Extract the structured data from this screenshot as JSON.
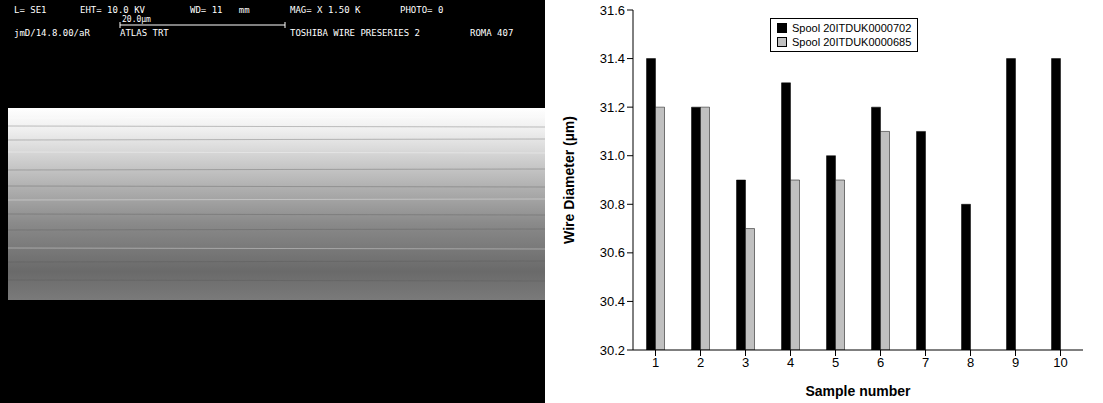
{
  "sem_image": {
    "header": [
      "L= SE1",
      "EHT= 10.0 KV",
      "WD= 11   mm",
      "MAG= X 1.50 K",
      "PHOTO= 0"
    ],
    "scale_bar": "20.0µm",
    "footer": [
      "jmD/14.8.00/aR",
      "ATLAS TRT",
      "TOSHIBA WIRE PRESERIES 2",
      "ROMA 407"
    ]
  },
  "chart_data": {
    "type": "bar",
    "x_label": "Sample number",
    "y_label": "Wire Diameter (µm)",
    "categories": [
      "1",
      "2",
      "3",
      "4",
      "5",
      "6",
      "7",
      "8",
      "9",
      "10"
    ],
    "series": [
      {
        "name": "Spool 20ITDUK0000702",
        "color": "#000000",
        "values": [
          31.4,
          31.2,
          30.9,
          31.3,
          31.0,
          31.2,
          31.1,
          30.8,
          31.4,
          31.4
        ]
      },
      {
        "name": "Spool 20ITDUK0000685",
        "color": "#c0c0c0",
        "values": [
          31.2,
          31.2,
          30.7,
          30.9,
          30.9,
          31.1,
          null,
          null,
          null,
          null
        ]
      }
    ],
    "ylim": [
      30.2,
      31.6
    ],
    "yticks": [
      30.2,
      30.4,
      30.6,
      30.8,
      {
        "value": 31,
        "label": "31.0"
      },
      31.2,
      31.4,
      31.6
    ],
    "grid": false,
    "legend": "top"
  }
}
